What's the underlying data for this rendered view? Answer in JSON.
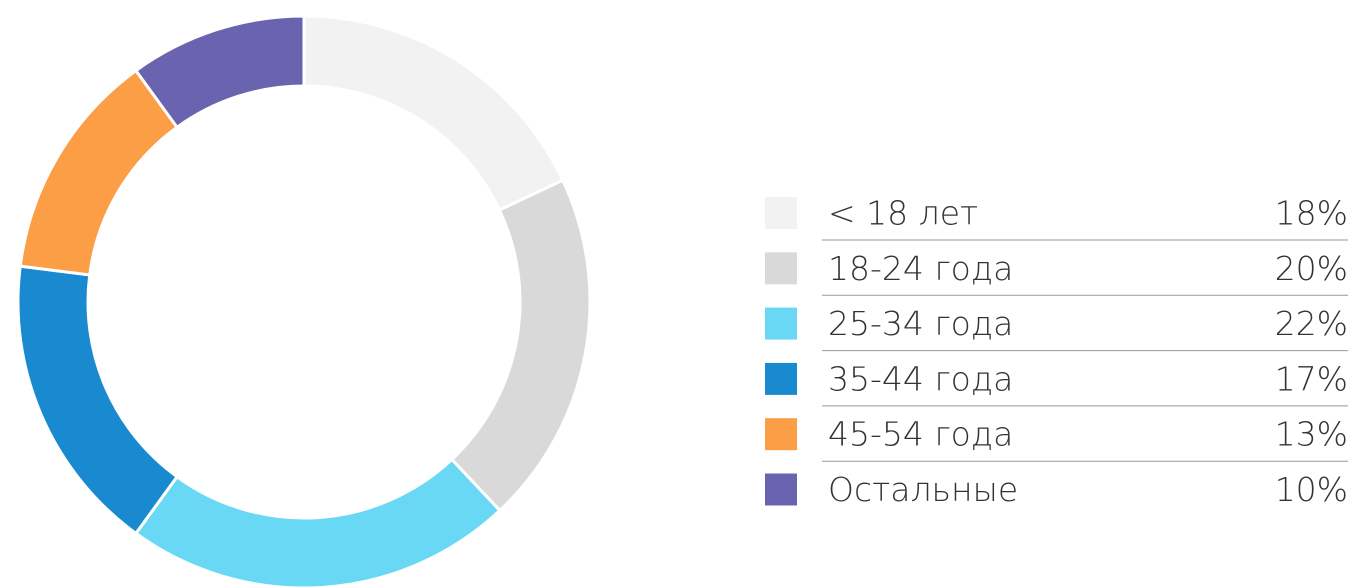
{
  "chart_data": {
    "type": "donut",
    "categories": [
      "< 18 лет",
      "18-24 года",
      "25-34 года",
      "35-44 года",
      "45-54 года",
      "Остальные"
    ],
    "values": [
      18,
      20,
      22,
      17,
      13,
      10
    ],
    "value_labels": [
      "18%",
      "20%",
      "22%",
      "17%",
      "13%",
      "10%"
    ],
    "colors": [
      "#f2f2f2",
      "#d9d9d9",
      "#69d8f5",
      "#1a8ad0",
      "#fb9e45",
      "#6a64b0"
    ],
    "legend": "right"
  }
}
